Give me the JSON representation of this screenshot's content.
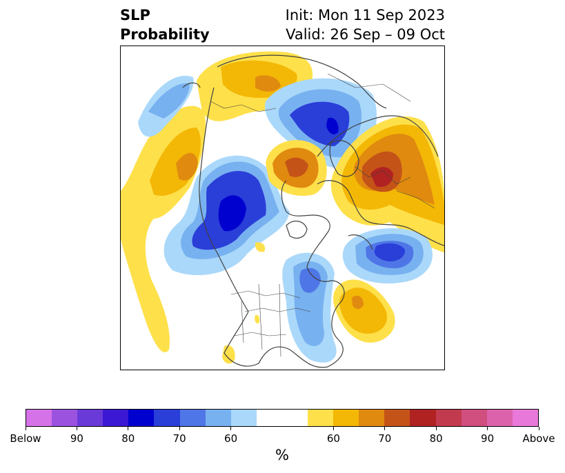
{
  "title": {
    "left_line1": "SLP",
    "left_line2": "Probability",
    "right_line1": "Init: Mon 11 Sep 2023",
    "right_line2": "Valid: 26 Sep – 09 Oct"
  },
  "map": {
    "projection": "north-polar-stereographic",
    "region": "Northern Hemisphere",
    "anomalies": [
      {
        "name": "below-north-pacific",
        "category": "Below",
        "max_probability": 70
      },
      {
        "name": "below-western-canada",
        "category": "Below",
        "max_probability": 80
      },
      {
        "name": "below-arctic-barents",
        "category": "Below",
        "max_probability": 80
      },
      {
        "name": "below-north-atlantic",
        "category": "Below",
        "max_probability": 80
      },
      {
        "name": "below-eastern-north-america",
        "category": "Below",
        "max_probability": 60
      },
      {
        "name": "above-northeast-pacific",
        "category": "Above",
        "max_probability": 70
      },
      {
        "name": "above-east-siberia",
        "category": "Above",
        "max_probability": 70
      },
      {
        "name": "above-arctic-canada",
        "category": "Above",
        "max_probability": 75
      },
      {
        "name": "above-scandinavia-russia",
        "category": "Above",
        "max_probability": 80
      },
      {
        "name": "above-west-atlantic",
        "category": "Above",
        "max_probability": 70
      }
    ]
  },
  "colorbar": {
    "unit_label": "%",
    "below_colors": [
      "#d572e8",
      "#9b52df",
      "#6a3ad8",
      "#3a18d4",
      "#0000cf",
      "#2a3ed8",
      "#4f76e6",
      "#78b1f0",
      "#aad8fa"
    ],
    "neutral_color": "#ffffff",
    "above_colors": [
      "#fee04a",
      "#f3b705",
      "#e08a10",
      "#c45318",
      "#b02222",
      "#c23a4e",
      "#d04f7f",
      "#dd62ac",
      "#e879da"
    ],
    "tick_labels": [
      {
        "key": "below-end",
        "label": "Below"
      },
      {
        "key": "below-90",
        "label": "90"
      },
      {
        "key": "below-80",
        "label": "80"
      },
      {
        "key": "below-70",
        "label": "70"
      },
      {
        "key": "below-60",
        "label": "60"
      },
      {
        "key": "above-60",
        "label": "60"
      },
      {
        "key": "above-70",
        "label": "70"
      },
      {
        "key": "above-80",
        "label": "80"
      },
      {
        "key": "above-90",
        "label": "90"
      },
      {
        "key": "above-end",
        "label": "Above"
      }
    ]
  }
}
